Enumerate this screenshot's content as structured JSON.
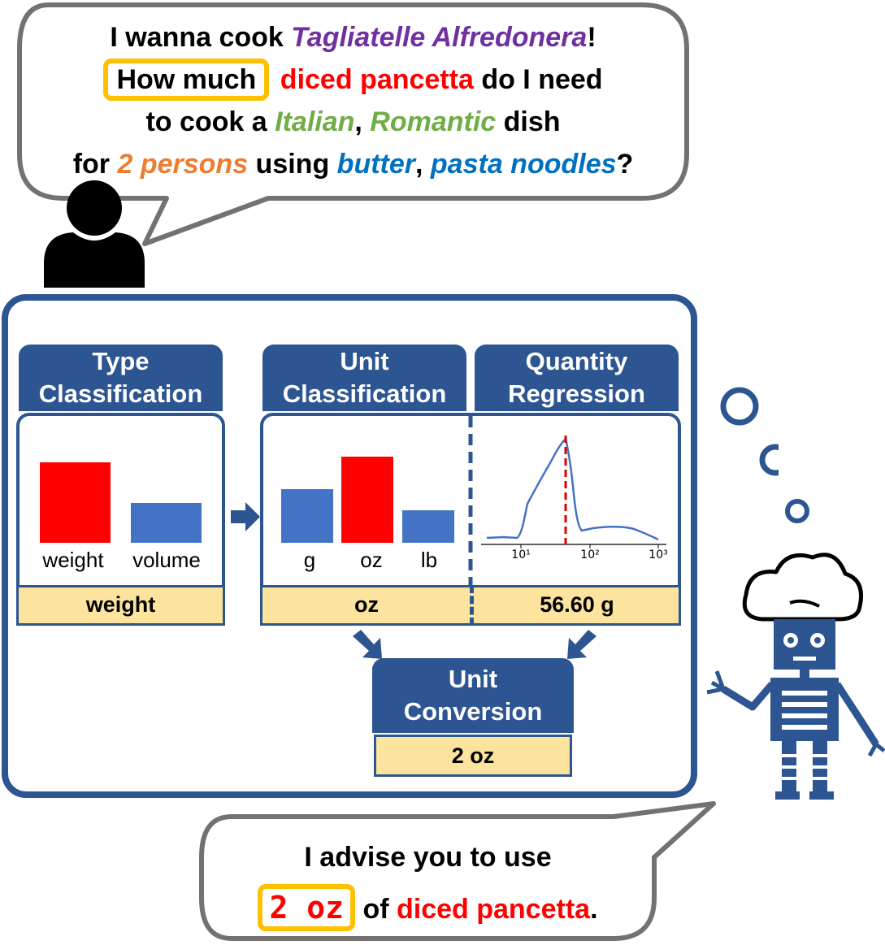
{
  "question": {
    "line1": {
      "pre": "I wanna cook ",
      "dish": "Tagliatelle Alfredonera",
      "post": "!"
    },
    "line2": {
      "highlight": "How much",
      "ingredient": "diced pancetta",
      "post": " do I need"
    },
    "line3": {
      "pre": "to cook a ",
      "tag1": "Italian",
      "sep": ", ",
      "tag2": "Romantic",
      "post": " dish"
    },
    "line4": {
      "pre": "for ",
      "servings": "2 persons",
      "mid": " using ",
      "ing1": "butter",
      "sep": ", ",
      "ing2": "pasta noodles",
      "post": "?"
    }
  },
  "type_classification": {
    "title_line1": "Type",
    "title_line2": "Classification",
    "labels": [
      "weight",
      "volume"
    ],
    "result": "weight"
  },
  "unit_classification": {
    "title_line1": "Unit",
    "title_line2": "Classification",
    "labels": [
      "g",
      "oz",
      "lb"
    ],
    "result": "oz"
  },
  "quantity_regression": {
    "title_line1": "Quantity",
    "title_line2": "Regression",
    "ticks": [
      "10¹",
      "10²",
      "10³"
    ],
    "result": "56.60 g"
  },
  "unit_conversion": {
    "title_line1": "Unit",
    "title_line2": "Conversion",
    "result": "2 oz"
  },
  "answer": {
    "line1": "I advise you to use",
    "amount": "2 oz",
    "mid": " of ",
    "ingredient": "diced pancetta",
    "post": "."
  },
  "colors": {
    "dish": "#7030a0",
    "ingredient": "#ff0000",
    "tag": "#70ad47",
    "servings": "#ed7d31",
    "using": "#0070c0",
    "highlight_border": "#ffc000",
    "panel_blue": "#2d5591",
    "bar_blue": "#4472c4",
    "bar_red": "#ff0000",
    "result_fill": "#fde49e"
  }
}
